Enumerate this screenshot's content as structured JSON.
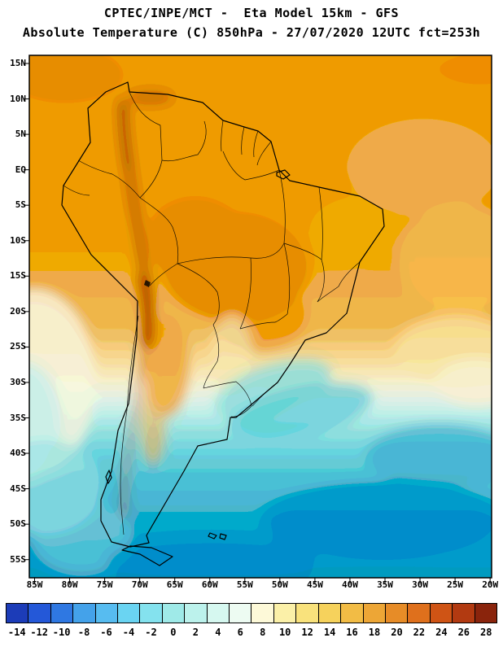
{
  "header": {
    "title": "CPTEC/INPE/MCT -  Eta Model 15km - GFS",
    "subtitle": "Absolute Temperature (C) 850hPa - 27/07/2020 12UTC fct=253h"
  },
  "map": {
    "lat_labels": [
      "15N",
      "10N",
      "5N",
      "EQ",
      "5S",
      "10S",
      "15S",
      "20S",
      "25S",
      "30S",
      "35S",
      "40S",
      "45S",
      "50S",
      "55S"
    ],
    "lon_labels": [
      "85W",
      "80W",
      "75W",
      "70W",
      "65W",
      "60W",
      "55W",
      "50W",
      "45W",
      "40W",
      "35W",
      "30W",
      "25W",
      "20W"
    ]
  },
  "colorbar": {
    "values": [
      "-14",
      "-12",
      "-10",
      "-8",
      "-6",
      "-4",
      "-2",
      "0",
      "2",
      "4",
      "6",
      "8",
      "10",
      "12",
      "14",
      "16",
      "18",
      "20",
      "22",
      "24",
      "26",
      "28"
    ],
    "colors": [
      "#1c3cb8",
      "#2458d8",
      "#2f78e2",
      "#44a2ea",
      "#57bcf0",
      "#6ad4f2",
      "#84e2ee",
      "#9feae8",
      "#bcf2ec",
      "#d6f8f0",
      "#edfbf2",
      "#fdf9d8",
      "#fbf0a8",
      "#f9e27c",
      "#f6d25c",
      "#f2bc45",
      "#eda636",
      "#e78c27",
      "#df701c",
      "#cf5415",
      "#b23a11",
      "#8a240c"
    ]
  },
  "chart_data": {
    "type": "heatmap",
    "title": "CPTEC/INPE/MCT -  Eta Model 15km - GFS",
    "subtitle": "Absolute Temperature (C) 850hPa - 27/07/2020 12UTC fct=253h",
    "issued_by": "CPTEC/INPE/MCT",
    "model": "Eta Model 15km - GFS",
    "variable": "Absolute Temperature",
    "units": "C",
    "level": "850hPa",
    "valid_time": "27/07/2020 12UTC",
    "forecast": "fct=253h",
    "domain_extent": {
      "lon": [
        "85W",
        "20W"
      ],
      "lat": [
        "15N",
        "55S"
      ]
    },
    "x_axis": {
      "label": "longitude",
      "ticks": [
        "85W",
        "80W",
        "75W",
        "70W",
        "65W",
        "60W",
        "55W",
        "50W",
        "45W",
        "40W",
        "35W",
        "30W",
        "25W",
        "20W"
      ]
    },
    "y_axis": {
      "label": "latitude",
      "ticks": [
        "15N",
        "10N",
        "5N",
        "EQ",
        "5S",
        "10S",
        "15S",
        "20S",
        "25S",
        "30S",
        "35S",
        "40S",
        "45S",
        "50S",
        "55S"
      ]
    },
    "colorbar": {
      "tick_values": [
        -14,
        -12,
        -10,
        -8,
        -6,
        -4,
        -2,
        0,
        2,
        4,
        6,
        8,
        10,
        12,
        14,
        16,
        18,
        20,
        22,
        24,
        26,
        28
      ],
      "colors": [
        "#1c3cb8",
        "#2458d8",
        "#2f78e2",
        "#44a2ea",
        "#57bcf0",
        "#6ad4f2",
        "#84e2ee",
        "#9feae8",
        "#bcf2ec",
        "#d6f8f0",
        "#edfbf2",
        "#fdf9d8",
        "#fbf0a8",
        "#f9e27c",
        "#f6d25c",
        "#f2bc45",
        "#eda636",
        "#e78c27",
        "#df701c",
        "#cf5415",
        "#b23a11",
        "#8a240c"
      ],
      "position": "bottom"
    },
    "field_summary": [
      {
        "region": "northern South America / Amazon (15N-10S)",
        "approx_temp_c": 18
      },
      {
        "region": "central Brazil plateau (10S-20S)",
        "approx_temp_c": 21
      },
      {
        "region": "Andes cordillera (Colombia to Bolivia/Chile)",
        "approx_temp_c": 27
      },
      {
        "region": "tropical Atlantic (EQ-15S)",
        "approx_temp_c": 15
      },
      {
        "region": "subtropical transition band (~27S-33S)",
        "approx_temp_c": 6
      },
      {
        "region": "Uruguay / southern Brazil coast",
        "approx_temp_c": 0
      },
      {
        "region": "Patagonia / Argentina (40S-55S)",
        "approx_temp_c": -2
      },
      {
        "region": "South Atlantic (45S-55S)",
        "approx_temp_c": -6
      },
      {
        "region": "southeast Pacific pale band (25S-40S)",
        "approx_temp_c": 3
      }
    ],
    "grid": false,
    "legend_position": "bottom"
  }
}
